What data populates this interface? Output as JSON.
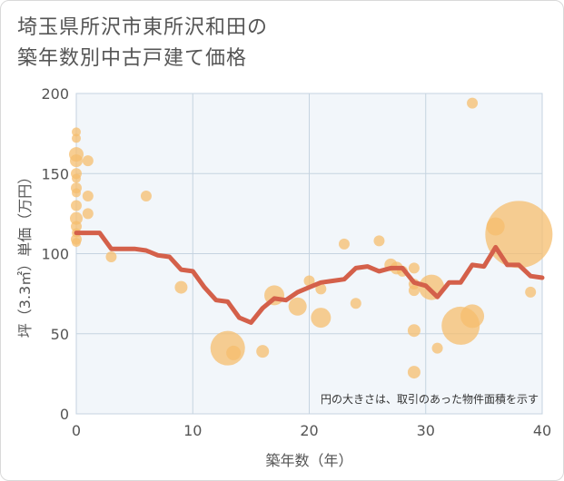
{
  "title_line1": "埼玉県所沢市東所沢和田の",
  "title_line2": "築年数別中古戸建て価格",
  "chart_data": {
    "type": "scatter",
    "xlabel": "築年数（年）",
    "ylabel": "坪（3.3㎡）単価（万円）",
    "xlim": [
      0,
      40
    ],
    "ylim": [
      0,
      200
    ],
    "xticks": [
      0,
      10,
      20,
      30,
      40
    ],
    "yticks": [
      0,
      50,
      100,
      150,
      200
    ],
    "note": "円の大きさは、取引のあった物件面積を示す",
    "grid": true,
    "colors": {
      "bubble": "#f5be6e",
      "line": "#d4604a",
      "plot_bg": "#f2f6fa",
      "grid": "#c5d3e0"
    },
    "bubbles": [
      {
        "x": 0,
        "y": 176,
        "s": 5
      },
      {
        "x": 0,
        "y": 172,
        "s": 5
      },
      {
        "x": 0,
        "y": 162,
        "s": 8
      },
      {
        "x": 0,
        "y": 158,
        "s": 7
      },
      {
        "x": 0,
        "y": 150,
        "s": 6
      },
      {
        "x": 0,
        "y": 147,
        "s": 5
      },
      {
        "x": 0,
        "y": 141,
        "s": 6
      },
      {
        "x": 0,
        "y": 138,
        "s": 5
      },
      {
        "x": 0,
        "y": 130,
        "s": 6
      },
      {
        "x": 0,
        "y": 122,
        "s": 7
      },
      {
        "x": 0,
        "y": 117,
        "s": 6
      },
      {
        "x": 0,
        "y": 113,
        "s": 5
      },
      {
        "x": 0,
        "y": 109,
        "s": 6
      },
      {
        "x": 0,
        "y": 107,
        "s": 5
      },
      {
        "x": 1,
        "y": 158,
        "s": 6
      },
      {
        "x": 1,
        "y": 136,
        "s": 6
      },
      {
        "x": 1,
        "y": 125,
        "s": 6
      },
      {
        "x": 3,
        "y": 98,
        "s": 6
      },
      {
        "x": 6,
        "y": 136,
        "s": 6
      },
      {
        "x": 9,
        "y": 79,
        "s": 7
      },
      {
        "x": 13,
        "y": 41,
        "s": 19
      },
      {
        "x": 13.5,
        "y": 38,
        "s": 8
      },
      {
        "x": 16,
        "y": 39,
        "s": 7
      },
      {
        "x": 17,
        "y": 74,
        "s": 11
      },
      {
        "x": 19,
        "y": 67,
        "s": 10
      },
      {
        "x": 20,
        "y": 83,
        "s": 6
      },
      {
        "x": 21,
        "y": 78,
        "s": 6
      },
      {
        "x": 21,
        "y": 60,
        "s": 11
      },
      {
        "x": 23,
        "y": 106,
        "s": 6
      },
      {
        "x": 24,
        "y": 69,
        "s": 6
      },
      {
        "x": 26,
        "y": 108,
        "s": 6
      },
      {
        "x": 27,
        "y": 93,
        "s": 7
      },
      {
        "x": 27.5,
        "y": 91,
        "s": 7
      },
      {
        "x": 28,
        "y": 89,
        "s": 6
      },
      {
        "x": 29,
        "y": 91,
        "s": 6
      },
      {
        "x": 29,
        "y": 81,
        "s": 6
      },
      {
        "x": 29,
        "y": 77,
        "s": 6
      },
      {
        "x": 29,
        "y": 52,
        "s": 7
      },
      {
        "x": 29,
        "y": 26,
        "s": 7
      },
      {
        "x": 30.5,
        "y": 79,
        "s": 14
      },
      {
        "x": 31,
        "y": 41,
        "s": 6
      },
      {
        "x": 33,
        "y": 55,
        "s": 21
      },
      {
        "x": 34,
        "y": 61,
        "s": 13
      },
      {
        "x": 34,
        "y": 194,
        "s": 6
      },
      {
        "x": 36,
        "y": 117,
        "s": 10
      },
      {
        "x": 38,
        "y": 112,
        "s": 37
      },
      {
        "x": 39,
        "y": 76,
        "s": 6
      }
    ],
    "trend": {
      "x": [
        0,
        1,
        2,
        3,
        4,
        5,
        6,
        7,
        8,
        9,
        10,
        11,
        12,
        13,
        14,
        15,
        16,
        17,
        18,
        19,
        20,
        21,
        22,
        23,
        24,
        25,
        26,
        27,
        28,
        29,
        30,
        31,
        32,
        33,
        34,
        35,
        36,
        37,
        38,
        39,
        40
      ],
      "y": [
        113,
        113,
        113,
        103,
        103,
        103,
        102,
        99,
        98,
        90,
        89,
        79,
        71,
        70,
        60,
        57,
        66,
        72,
        71,
        76,
        79,
        82,
        83,
        84,
        91,
        92,
        89,
        91,
        91,
        82,
        80,
        73,
        82,
        82,
        93,
        92,
        104,
        93,
        93,
        86,
        85
      ]
    }
  }
}
